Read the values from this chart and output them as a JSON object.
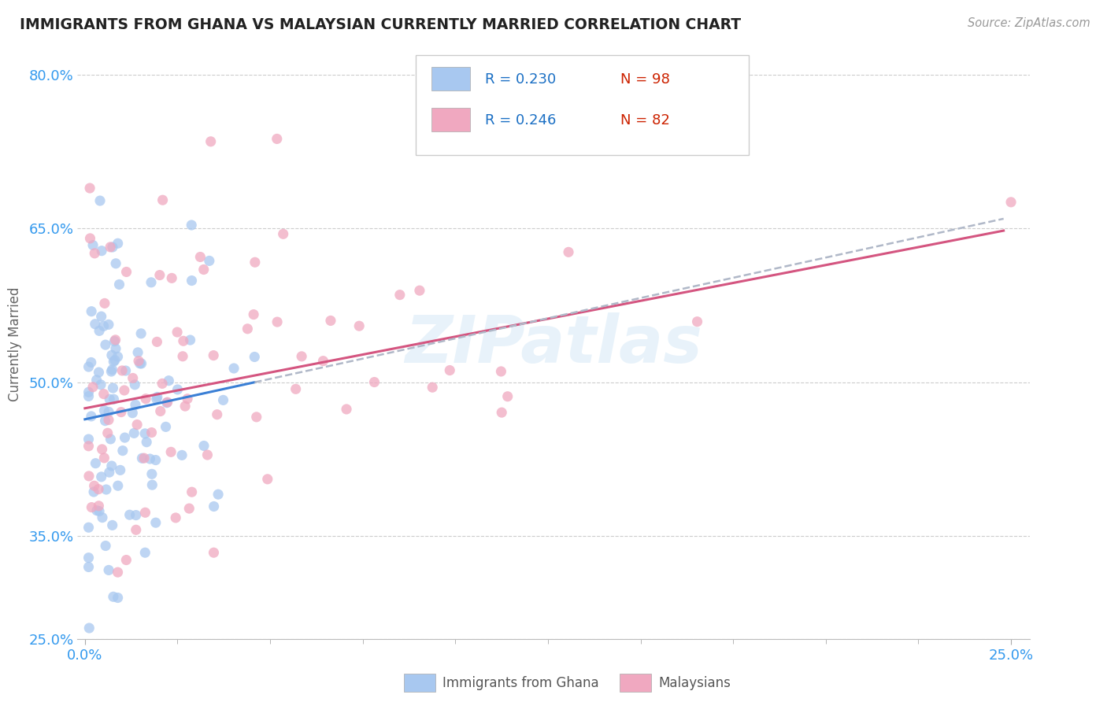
{
  "title": "IMMIGRANTS FROM GHANA VS MALAYSIAN CURRENTLY MARRIED CORRELATION CHART",
  "source": "Source: ZipAtlas.com",
  "ylabel": "Currently Married",
  "ylim": [
    0.255,
    0.825
  ],
  "xlim": [
    -0.002,
    0.255
  ],
  "ghana_R": 0.23,
  "ghana_N": 98,
  "malaysian_R": 0.246,
  "malaysian_N": 82,
  "ghana_color": "#a8c8f0",
  "malaysian_color": "#f0a8c0",
  "ghana_trend_color": "#3a7fd5",
  "malaysian_trend_color": "#d45580",
  "trend_dash_color": "#b0b8c8",
  "watermark": "ZIPatlas",
  "legend_R_color": "#1a6fc4",
  "legend_N_color": "#cc2200",
  "ytick_labels": [
    "25.0%",
    "35.0%",
    "50.0%",
    "65.0%",
    "80.0%"
  ],
  "ytick_values": [
    0.25,
    0.35,
    0.5,
    0.65,
    0.8
  ],
  "xtick_labels": [
    "0.0%",
    "25.0%"
  ],
  "xtick_values": [
    0.0,
    0.25
  ]
}
